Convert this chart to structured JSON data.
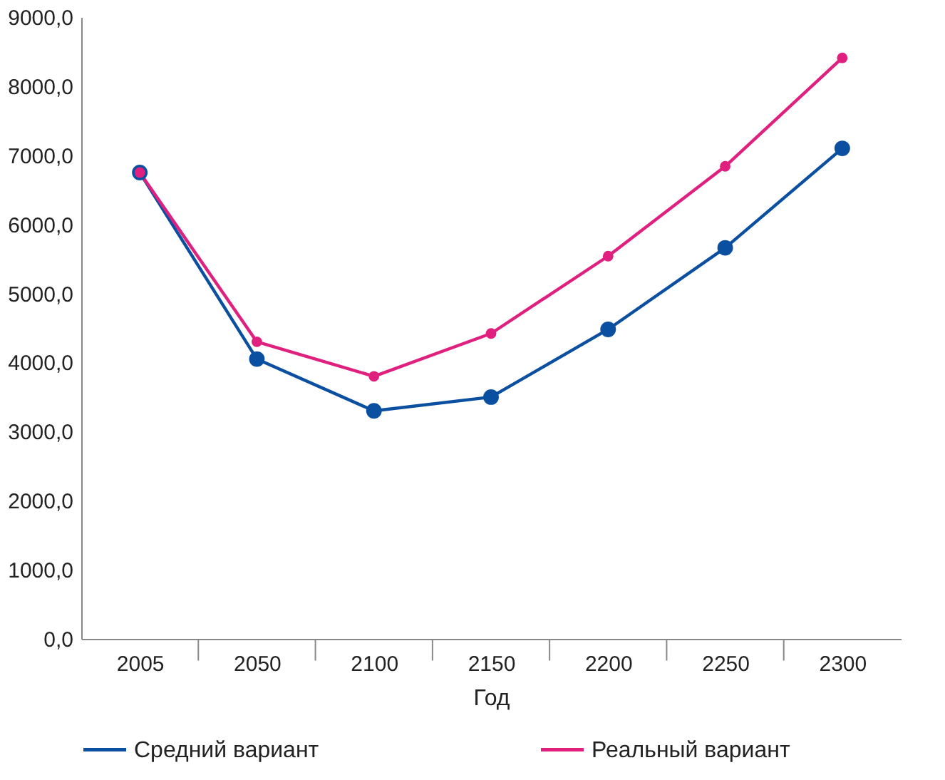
{
  "chart_data": {
    "type": "line",
    "xlabel": "Год",
    "categories": [
      "2005",
      "2050",
      "2100",
      "2150",
      "2200",
      "2250",
      "2300"
    ],
    "series": [
      {
        "name": "Средний вариант",
        "color": "#0a4fa0",
        "values": [
          6750,
          4050,
          3300,
          3500,
          4480,
          5660,
          7100
        ]
      },
      {
        "name": "Реальный вариант",
        "color": "#e0207f",
        "values": [
          6750,
          4300,
          3800,
          4420,
          5540,
          6840,
          8410
        ]
      }
    ],
    "ylim": [
      0,
      9000
    ],
    "yticks": [
      {
        "value": 0,
        "label": "0,0"
      },
      {
        "value": 1000,
        "label": "1000,0"
      },
      {
        "value": 2000,
        "label": "2000,0"
      },
      {
        "value": 3000,
        "label": "3000,0"
      },
      {
        "value": 4000,
        "label": "4000,0"
      },
      {
        "value": 5000,
        "label": "5000,0"
      },
      {
        "value": 6000,
        "label": "6000,0"
      },
      {
        "value": 7000,
        "label": "7000,0"
      },
      {
        "value": 8000,
        "label": "8000,0"
      },
      {
        "value": 9000,
        "label": "9000,0"
      }
    ],
    "grid": false,
    "legend": "bottom",
    "marker": "circle",
    "line_style": "solid"
  }
}
